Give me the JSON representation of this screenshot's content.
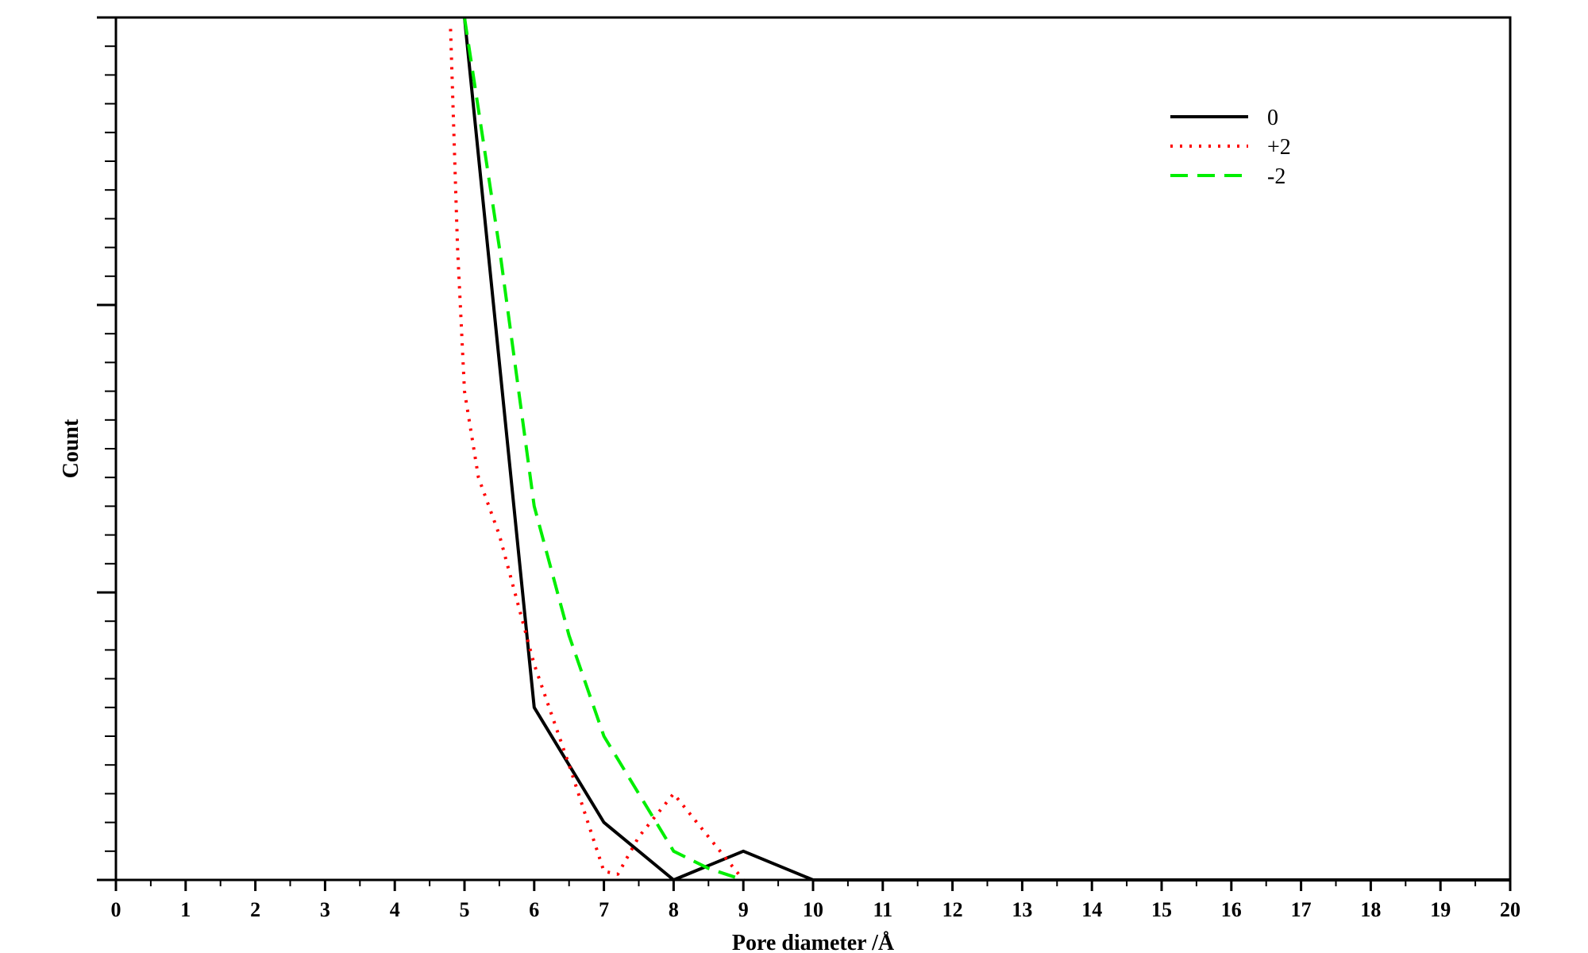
{
  "chart_data": {
    "type": "line",
    "title": "",
    "xlabel": "Pore diameter /Å",
    "ylabel": "Count",
    "xlim": [
      0,
      20
    ],
    "ylim": [
      0,
      30
    ],
    "x_ticks": [
      "0",
      "1",
      "2",
      "3",
      "4",
      "5",
      "6",
      "7",
      "8",
      "9",
      "10",
      "11",
      "12",
      "13",
      "14",
      "15",
      "16",
      "17",
      "18",
      "19",
      "20"
    ],
    "y_tick_labels_shown": false,
    "grid": false,
    "legend_position": "top-right",
    "series": [
      {
        "name": "0",
        "style": "solid",
        "color": "#000000",
        "x": [
          5,
          6,
          7,
          8,
          9,
          10,
          20
        ],
        "y": [
          30,
          6,
          2,
          0,
          1,
          0,
          0
        ]
      },
      {
        "name": "+2",
        "style": "dotted",
        "color": "#ff0000",
        "x": [
          4.8,
          4.9,
          5.0,
          5.2,
          5.5,
          6.0,
          6.5,
          7.0,
          7.2,
          7.5,
          8.0,
          8.5,
          9.0
        ],
        "y": [
          29.6,
          22,
          17,
          14,
          12,
          7.5,
          4,
          0.3,
          0.2,
          1.5,
          3,
          1.5,
          0
        ]
      },
      {
        "name": "-2",
        "style": "dashed",
        "color": "#00ee00",
        "x": [
          5.0,
          5.5,
          6.0,
          6.5,
          7.0,
          7.5,
          8.0,
          8.5,
          9.0
        ],
        "y": [
          30,
          22,
          13,
          8.5,
          5,
          3,
          1,
          0.4,
          0
        ]
      }
    ]
  }
}
